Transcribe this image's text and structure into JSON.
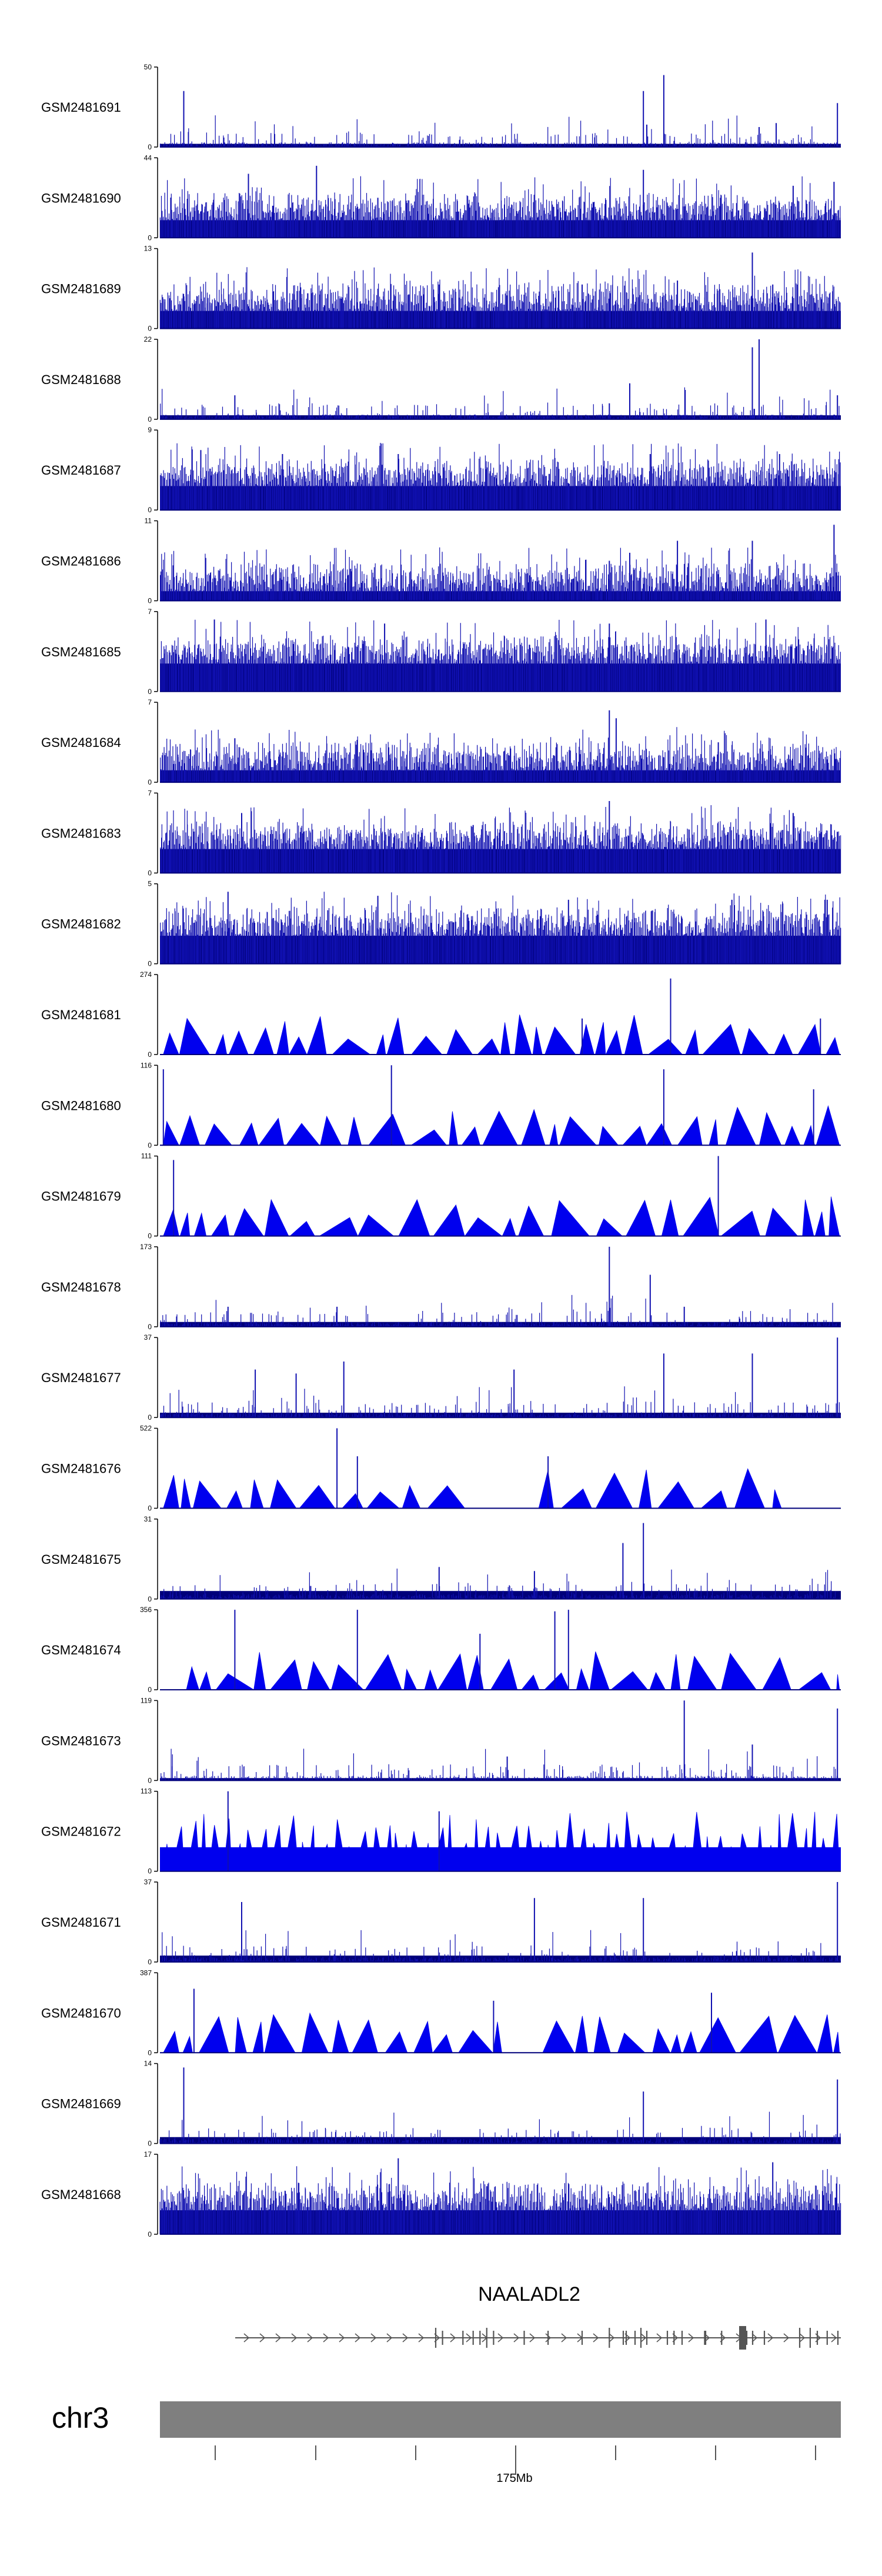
{
  "chart_data": {
    "type": "genome-browser-coverage",
    "chromosome": "chr3",
    "gene": "NAALADL2",
    "axis_label": "175Mb",
    "colors": {
      "bar": "#1010b0",
      "bar_dark": "#00007a",
      "area": "#0000ee",
      "axis": "#000000",
      "gene": "#555555",
      "ideogram": "#7f7f7f"
    },
    "tracks": [
      {
        "name": "GSM2481691",
        "max": 50,
        "base": 0.04,
        "style": "sparse",
        "peaks": [
          [
            0.035,
            0.7
          ],
          [
            0.71,
            0.7
          ],
          [
            0.715,
            0.28
          ],
          [
            0.74,
            0.9
          ],
          [
            0.905,
            0.3
          ],
          [
            0.88,
            0.25
          ],
          [
            0.995,
            0.55
          ]
        ]
      },
      {
        "name": "GSM2481690",
        "max": 44,
        "base": 0.22,
        "style": "dense",
        "peaks": [
          [
            0.13,
            0.8
          ],
          [
            0.23,
            0.9
          ],
          [
            0.32,
            0.5
          ],
          [
            0.71,
            0.85
          ],
          [
            0.93,
            0.65
          ],
          [
            0.99,
            0.7
          ]
        ]
      },
      {
        "name": "GSM2481689",
        "max": 13,
        "base": 0.22,
        "style": "dense",
        "peaks": [
          [
            0.41,
            0.55
          ],
          [
            0.62,
            0.55
          ],
          [
            0.76,
            0.6
          ],
          [
            0.87,
            0.95
          ],
          [
            0.9,
            0.55
          ]
        ]
      },
      {
        "name": "GSM2481688",
        "max": 22,
        "base": 0.05,
        "style": "sparse",
        "peaks": [
          [
            0.11,
            0.3
          ],
          [
            0.66,
            0.2
          ],
          [
            0.66,
            0.2
          ],
          [
            0.69,
            0.45
          ],
          [
            0.87,
            0.9
          ],
          [
            0.87,
            0.75
          ],
          [
            0.88,
            1.0
          ],
          [
            0.995,
            0.3
          ]
        ]
      },
      {
        "name": "GSM2481687",
        "max": 9,
        "base": 0.3,
        "style": "dense",
        "peaks": [
          [
            0.06,
            0.75
          ],
          [
            0.18,
            0.7
          ],
          [
            0.35,
            0.7
          ],
          [
            0.58,
            0.65
          ],
          [
            0.72,
            0.7
          ],
          [
            0.91,
            0.7
          ]
        ]
      },
      {
        "name": "GSM2481686",
        "max": 11,
        "base": 0.12,
        "style": "dense",
        "peaks": [
          [
            0.28,
            0.4
          ],
          [
            0.66,
            0.5
          ],
          [
            0.69,
            0.6
          ],
          [
            0.76,
            0.75
          ],
          [
            0.87,
            0.75
          ],
          [
            0.99,
            0.95
          ]
        ]
      },
      {
        "name": "GSM2481685",
        "max": 7,
        "base": 0.35,
        "style": "dense",
        "peaks": [
          [
            0.08,
            0.9
          ],
          [
            0.33,
            0.85
          ],
          [
            0.66,
            0.85
          ],
          [
            0.89,
            0.9
          ]
        ]
      },
      {
        "name": "GSM2481684",
        "max": 7,
        "base": 0.15,
        "style": "dense",
        "peaks": [
          [
            0.11,
            0.55
          ],
          [
            0.31,
            0.4
          ],
          [
            0.66,
            0.9
          ],
          [
            0.67,
            0.8
          ],
          [
            0.82,
            0.5
          ]
        ]
      },
      {
        "name": "GSM2481683",
        "max": 7,
        "base": 0.3,
        "style": "dense",
        "peaks": [
          [
            0.12,
            0.75
          ],
          [
            0.46,
            0.6
          ],
          [
            0.66,
            0.9
          ],
          [
            0.93,
            0.75
          ]
        ]
      },
      {
        "name": "GSM2481682",
        "max": 5,
        "base": 0.35,
        "style": "dense",
        "peaks": [
          [
            0.1,
            0.9
          ],
          [
            0.32,
            0.85
          ],
          [
            0.6,
            0.8
          ],
          [
            0.84,
            0.8
          ],
          [
            0.98,
            0.8
          ]
        ]
      },
      {
        "name": "GSM2481681",
        "max": 274,
        "base": 0.0,
        "style": "tri",
        "seed": 11,
        "peaks": [
          [
            0.62,
            0.45
          ],
          [
            0.75,
            0.95
          ],
          [
            0.97,
            0.45
          ]
        ]
      },
      {
        "name": "GSM2481680",
        "max": 116,
        "base": 0.0,
        "style": "tri",
        "seed": 12,
        "peaks": [
          [
            0.005,
            0.95
          ],
          [
            0.34,
            1.0
          ],
          [
            0.74,
            0.95
          ],
          [
            0.96,
            0.7
          ]
        ]
      },
      {
        "name": "GSM2481679",
        "max": 111,
        "base": 0.0,
        "style": "tri",
        "seed": 13,
        "peaks": [
          [
            0.02,
            0.95
          ],
          [
            0.82,
            1.0
          ]
        ]
      },
      {
        "name": "GSM2481678",
        "max": 173,
        "base": 0.06,
        "style": "sparse",
        "peaks": [
          [
            0.66,
            1.0
          ],
          [
            0.72,
            0.65
          ],
          [
            0.1,
            0.25
          ],
          [
            0.26,
            0.25
          ],
          [
            0.77,
            0.25
          ]
        ]
      },
      {
        "name": "GSM2481677",
        "max": 37,
        "base": 0.06,
        "style": "sparse",
        "peaks": [
          [
            0.14,
            0.6
          ],
          [
            0.2,
            0.55
          ],
          [
            0.27,
            0.7
          ],
          [
            0.52,
            0.6
          ],
          [
            0.74,
            0.8
          ],
          [
            0.87,
            0.8
          ],
          [
            0.995,
            1.0
          ]
        ]
      },
      {
        "name": "GSM2481676",
        "max": 522,
        "base": 0.0,
        "style": "tri",
        "seed": 16,
        "gaps": [
          [
            0.46,
            0.55
          ],
          [
            0.93,
            1.0
          ]
        ],
        "peaks": [
          [
            0.26,
            1.0
          ],
          [
            0.29,
            0.65
          ],
          [
            0.57,
            0.65
          ]
        ]
      },
      {
        "name": "GSM2481675",
        "max": 31,
        "base": 0.1,
        "style": "sparse",
        "peaks": [
          [
            0.68,
            0.7
          ],
          [
            0.71,
            0.95
          ],
          [
            0.41,
            0.4
          ],
          [
            0.55,
            0.35
          ]
        ]
      },
      {
        "name": "GSM2481674",
        "max": 356,
        "base": 0.0,
        "style": "tri",
        "seed": 18,
        "gaps": [
          [
            0.0,
            0.02
          ]
        ],
        "peaks": [
          [
            0.11,
            1.0
          ],
          [
            0.29,
            1.0
          ],
          [
            0.58,
            0.98
          ],
          [
            0.6,
            1.0
          ],
          [
            0.47,
            0.7
          ]
        ]
      },
      {
        "name": "GSM2481673",
        "max": 119,
        "base": 0.03,
        "style": "sparse",
        "peaks": [
          [
            0.77,
            1.0
          ],
          [
            0.87,
            0.45
          ],
          [
            0.51,
            0.3
          ],
          [
            0.995,
            0.9
          ]
        ]
      },
      {
        "name": "GSM2481672",
        "max": 113,
        "base": 0.3,
        "style": "tritall",
        "seed": 20,
        "peaks": [
          [
            0.1,
            1.0
          ],
          [
            0.41,
            0.75
          ]
        ]
      },
      {
        "name": "GSM2481671",
        "max": 37,
        "base": 0.08,
        "style": "sparse",
        "peaks": [
          [
            0.12,
            0.75
          ],
          [
            0.55,
            0.8
          ],
          [
            0.71,
            0.8
          ],
          [
            0.995,
            1.0
          ]
        ]
      },
      {
        "name": "GSM2481670",
        "max": 387,
        "base": 0.0,
        "style": "tri",
        "seed": 22,
        "gaps": [
          [
            0.5,
            0.55
          ]
        ],
        "peaks": [
          [
            0.05,
            0.8
          ],
          [
            0.49,
            0.65
          ],
          [
            0.81,
            0.75
          ]
        ]
      },
      {
        "name": "GSM2481669",
        "max": 14,
        "base": 0.08,
        "style": "sparse",
        "peaks": [
          [
            0.035,
            0.95
          ],
          [
            0.71,
            0.65
          ],
          [
            0.995,
            0.8
          ]
        ]
      },
      {
        "name": "GSM2481668",
        "max": 17,
        "base": 0.3,
        "style": "dense",
        "peaks": [
          [
            0.35,
            0.95
          ],
          [
            0.9,
            0.9
          ],
          [
            0.48,
            0.6
          ]
        ]
      }
    ]
  }
}
